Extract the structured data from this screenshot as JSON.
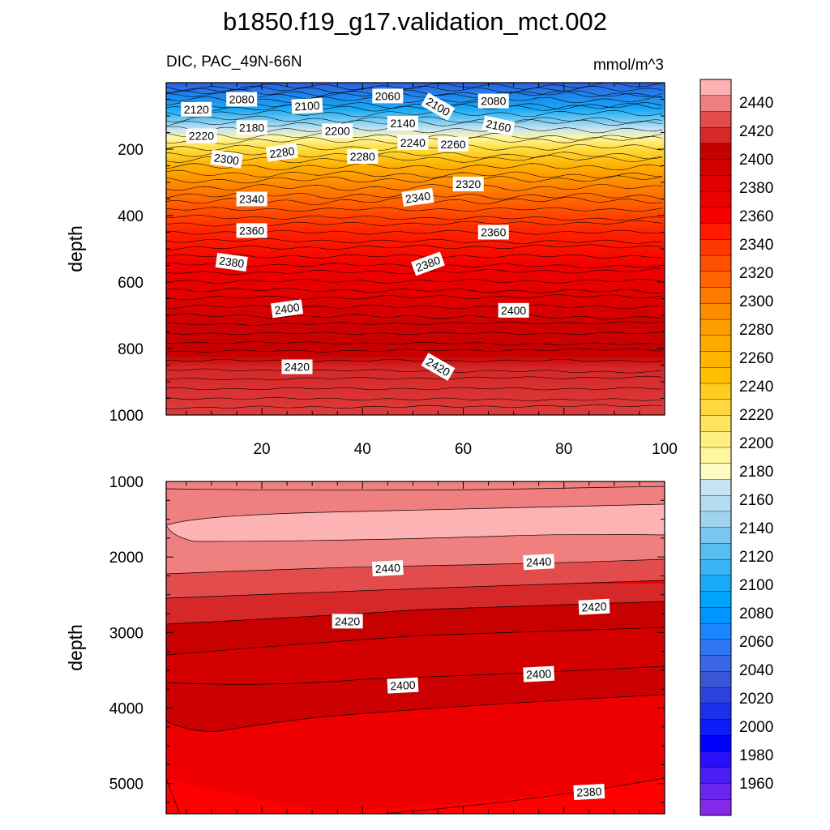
{
  "figure": {
    "title": "b1850.f19_g17.validation_mct.002",
    "variable": "DIC, PAC_49N-66N",
    "units": "mmol/m^3"
  },
  "chart_data": [
    {
      "type": "contour",
      "panel": "upper",
      "ylabel": "depth",
      "xlim": [
        1,
        100
      ],
      "ylim": [
        1000,
        0
      ],
      "x_ticks": [
        20,
        40,
        60,
        80,
        100
      ],
      "y_ticks": [
        200,
        400,
        600,
        800,
        1000
      ],
      "contour_labels": [
        {
          "value": 2060,
          "x": 45,
          "y": 40,
          "angle": 0
        },
        {
          "value": 2080,
          "x": 16,
          "y": 50,
          "angle": 0
        },
        {
          "value": 2080,
          "x": 66,
          "y": 55,
          "angle": 0
        },
        {
          "value": 2100,
          "x": 29,
          "y": 70,
          "angle": -3
        },
        {
          "value": 2100,
          "x": 55,
          "y": 72,
          "angle": 30
        },
        {
          "value": 2120,
          "x": 7,
          "y": 80,
          "angle": 0
        },
        {
          "value": 2140,
          "x": 48,
          "y": 122,
          "angle": 0
        },
        {
          "value": 2160,
          "x": 67,
          "y": 130,
          "angle": 12
        },
        {
          "value": 2180,
          "x": 18,
          "y": 135,
          "angle": 0
        },
        {
          "value": 2200,
          "x": 35,
          "y": 145,
          "angle": 0
        },
        {
          "value": 2220,
          "x": 8,
          "y": 160,
          "angle": 0
        },
        {
          "value": 2240,
          "x": 50,
          "y": 180,
          "angle": 0
        },
        {
          "value": 2260,
          "x": 58,
          "y": 185,
          "angle": 0
        },
        {
          "value": 2280,
          "x": 24,
          "y": 210,
          "angle": -8
        },
        {
          "value": 2280,
          "x": 40,
          "y": 222,
          "angle": 0
        },
        {
          "value": 2300,
          "x": 13,
          "y": 230,
          "angle": 8
        },
        {
          "value": 2320,
          "x": 61,
          "y": 305,
          "angle": 0
        },
        {
          "value": 2340,
          "x": 18,
          "y": 350,
          "angle": 0
        },
        {
          "value": 2340,
          "x": 51,
          "y": 345,
          "angle": -8
        },
        {
          "value": 2360,
          "x": 18,
          "y": 445,
          "angle": 0
        },
        {
          "value": 2360,
          "x": 66,
          "y": 450,
          "angle": 0
        },
        {
          "value": 2380,
          "x": 14,
          "y": 540,
          "angle": 8
        },
        {
          "value": 2380,
          "x": 53,
          "y": 545,
          "angle": -20
        },
        {
          "value": 2400,
          "x": 25,
          "y": 680,
          "angle": -8
        },
        {
          "value": 2400,
          "x": 70,
          "y": 685,
          "angle": 0
        },
        {
          "value": 2420,
          "x": 27,
          "y": 855,
          "angle": 0
        },
        {
          "value": 2420,
          "x": 55,
          "y": 855,
          "angle": 30
        }
      ]
    },
    {
      "type": "contour",
      "panel": "lower",
      "ylabel": "depth",
      "xlim": [
        1,
        100
      ],
      "ylim": [
        5400,
        1000
      ],
      "y_ticks": [
        1000,
        2000,
        3000,
        4000,
        5000
      ],
      "contour_labels": [
        {
          "value": 2440,
          "x": 45,
          "y": 2150,
          "angle": -3
        },
        {
          "value": 2440,
          "x": 75,
          "y": 2065,
          "angle": -3
        },
        {
          "value": 2420,
          "x": 37,
          "y": 2850,
          "angle": 0
        },
        {
          "value": 2420,
          "x": 86,
          "y": 2660,
          "angle": -3
        },
        {
          "value": 2400,
          "x": 48,
          "y": 3700,
          "angle": -3
        },
        {
          "value": 2400,
          "x": 75,
          "y": 3550,
          "angle": -3
        },
        {
          "value": 2380,
          "x": 85,
          "y": 5110,
          "angle": -3
        }
      ]
    }
  ],
  "colorbar": {
    "labels": [
      "2440",
      "2420",
      "2400",
      "2380",
      "2360",
      "2340",
      "2320",
      "2300",
      "2280",
      "2260",
      "2240",
      "2220",
      "2200",
      "2180",
      "2160",
      "2140",
      "2120",
      "2100",
      "2080",
      "2060",
      "2040",
      "2020",
      "2000",
      "1980",
      "1960"
    ],
    "colors": [
      "#fdb3b3",
      "#f08080",
      "#e34c4c",
      "#d62828",
      "#c50000",
      "#d40000",
      "#e00000",
      "#ec0000",
      "#f70000",
      "#ff1a00",
      "#ff3800",
      "#ff5000",
      "#ff6400",
      "#ff7a00",
      "#ff8c00",
      "#ff9c00",
      "#ffaa00",
      "#ffb400",
      "#ffc000",
      "#ffcc20",
      "#ffd840",
      "#ffe460",
      "#ffee80",
      "#fff6a0",
      "#fffbc4",
      "#c8e4f2",
      "#b4dcf0",
      "#a0d4ee",
      "#7ac8f0",
      "#58bef2",
      "#3ab4f4",
      "#18acf8",
      "#00a6fa",
      "#0096ff",
      "#1a86ff",
      "#2e76f2",
      "#3a66e4",
      "#3a56d8",
      "#2b42e0",
      "#1c30ec",
      "#0c1cf6",
      "#0000ff",
      "#2a10f8",
      "#4a1ef2",
      "#6a26ee",
      "#8428ea"
    ]
  }
}
